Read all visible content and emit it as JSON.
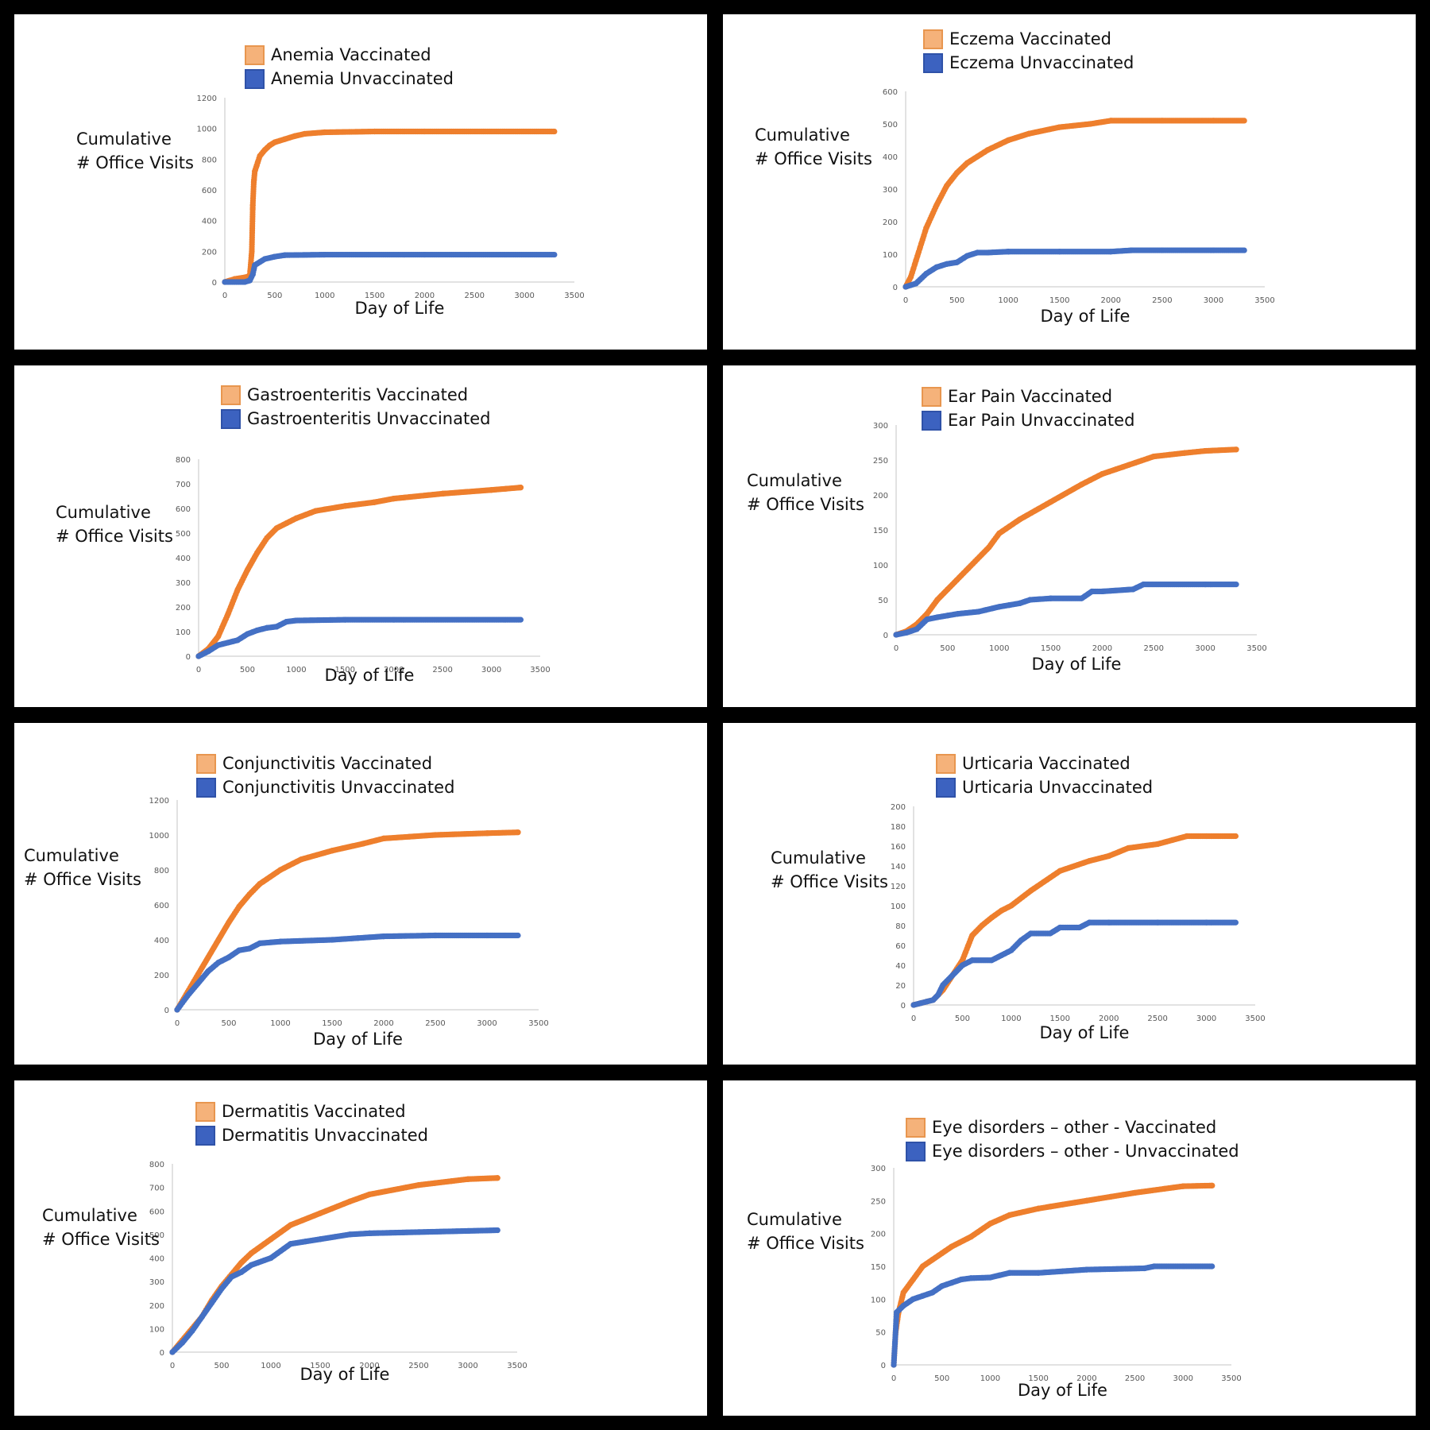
{
  "colors": {
    "background": "#000000",
    "panel": "#FFFFFF",
    "vaccinated": "#EE7F2D",
    "unvaccinated": "#4470C4",
    "axis": "#D9D9D9",
    "tick_text": "#595959"
  },
  "common": {
    "ylabel_line1": "Cumulative",
    "ylabel_line2": "# Office Visits",
    "xlabel": "Day of Life"
  },
  "panels": [
    {
      "legend_vax": "Anemia Vaccinated",
      "legend_unvax": "Anemia Unvaccinated"
    },
    {
      "legend_vax": "Eczema Vaccinated",
      "legend_unvax": "Eczema Unvaccinated"
    },
    {
      "legend_vax": "Gastroenteritis Vaccinated",
      "legend_unvax": "Gastroenteritis Unvaccinated"
    },
    {
      "legend_vax": "Ear Pain Vaccinated",
      "legend_unvax": "Ear Pain Unvaccinated"
    },
    {
      "legend_vax": "Conjunctivitis Vaccinated",
      "legend_unvax": "Conjunctivitis Unvaccinated"
    },
    {
      "legend_vax": "Urticaria Vaccinated",
      "legend_unvax": "Urticaria Unvaccinated"
    },
    {
      "legend_vax": "Dermatitis Vaccinated",
      "legend_unvax": "Dermatitis Unvaccinated"
    },
    {
      "legend_vax": "Eye disorders – other - Vaccinated",
      "legend_unvax": "Eye disorders – other - Unvaccinated"
    }
  ],
  "chart_data": [
    {
      "type": "scatter",
      "xlabel": "Day of Life",
      "ylabel": "Cumulative # Office Visits",
      "xlim": [
        0,
        3500
      ],
      "ylim": [
        0,
        1200
      ],
      "xticks": [
        0,
        500,
        1000,
        1500,
        2000,
        2500,
        3000,
        3500
      ],
      "yticks": [
        0,
        200,
        400,
        600,
        800,
        1000,
        1200
      ],
      "series": [
        {
          "name": "Anemia Vaccinated",
          "x": [
            0,
            100,
            200,
            250,
            270,
            280,
            290,
            300,
            320,
            350,
            400,
            450,
            500,
            600,
            700,
            800,
            1000,
            1500,
            2000,
            3300
          ],
          "y": [
            0,
            20,
            30,
            40,
            200,
            500,
            650,
            720,
            760,
            820,
            860,
            890,
            910,
            930,
            950,
            965,
            975,
            980,
            980,
            980
          ]
        },
        {
          "name": "Anemia Unvaccinated",
          "x": [
            0,
            200,
            250,
            280,
            300,
            350,
            400,
            500,
            600,
            1000,
            2000,
            3300
          ],
          "y": [
            0,
            0,
            10,
            50,
            110,
            130,
            150,
            165,
            175,
            178,
            178,
            178
          ]
        }
      ]
    },
    {
      "type": "scatter",
      "xlabel": "Day of Life",
      "ylabel": "Cumulative # Office Visits",
      "xlim": [
        0,
        3500
      ],
      "ylim": [
        0,
        600
      ],
      "xticks": [
        0,
        500,
        1000,
        1500,
        2000,
        2500,
        3000,
        3500
      ],
      "yticks": [
        0,
        100,
        200,
        300,
        400,
        500,
        600
      ],
      "series": [
        {
          "name": "Eczema Vaccinated",
          "x": [
            0,
            50,
            100,
            200,
            300,
            400,
            500,
            600,
            700,
            800,
            1000,
            1200,
            1500,
            1800,
            2000,
            2500,
            3000,
            3300
          ],
          "y": [
            0,
            30,
            80,
            180,
            250,
            310,
            350,
            380,
            400,
            420,
            450,
            470,
            490,
            500,
            510,
            510,
            510,
            510
          ]
        },
        {
          "name": "Eczema Unvaccinated",
          "x": [
            0,
            100,
            200,
            300,
            400,
            500,
            600,
            700,
            800,
            1000,
            1500,
            2000,
            2200,
            2500,
            3000,
            3300
          ],
          "y": [
            0,
            10,
            40,
            60,
            70,
            75,
            95,
            105,
            105,
            108,
            108,
            108,
            112,
            112,
            112,
            112
          ]
        }
      ]
    },
    {
      "type": "scatter",
      "xlabel": "Day of Life",
      "ylabel": "Cumulative # Office Visits",
      "xlim": [
        0,
        3500
      ],
      "ylim": [
        0,
        800
      ],
      "xticks": [
        0,
        500,
        1000,
        1500,
        2000,
        2500,
        3000,
        3500
      ],
      "yticks": [
        0,
        100,
        200,
        300,
        400,
        500,
        600,
        700,
        800
      ],
      "series": [
        {
          "name": "Gastroenteritis Vaccinated",
          "x": [
            0,
            100,
            200,
            300,
            400,
            500,
            600,
            700,
            800,
            900,
            1000,
            1200,
            1500,
            1800,
            2000,
            2500,
            3000,
            3300
          ],
          "y": [
            0,
            30,
            80,
            170,
            270,
            350,
            420,
            480,
            520,
            540,
            560,
            590,
            610,
            625,
            640,
            660,
            675,
            685
          ]
        },
        {
          "name": "Gastroenteritis Unvaccinated",
          "x": [
            0,
            100,
            200,
            300,
            400,
            500,
            600,
            700,
            800,
            900,
            1000,
            1500,
            2000,
            3300
          ],
          "y": [
            0,
            20,
            45,
            55,
            65,
            90,
            105,
            115,
            120,
            140,
            145,
            148,
            148,
            148
          ]
        }
      ]
    },
    {
      "type": "scatter",
      "xlabel": "Day of Life",
      "ylabel": "Cumulative # Office Visits",
      "xlim": [
        0,
        3500
      ],
      "ylim": [
        0,
        300
      ],
      "xticks": [
        0,
        500,
        1000,
        1500,
        2000,
        2500,
        3000,
        3500
      ],
      "yticks": [
        0,
        50,
        100,
        150,
        200,
        250,
        300
      ],
      "series": [
        {
          "name": "Ear Pain Vaccinated",
          "x": [
            0,
            100,
            200,
            300,
            400,
            500,
            700,
            900,
            1000,
            1200,
            1500,
            1800,
            2000,
            2200,
            2500,
            2800,
            3000,
            3300
          ],
          "y": [
            0,
            5,
            15,
            30,
            50,
            65,
            95,
            125,
            145,
            165,
            190,
            215,
            230,
            240,
            255,
            260,
            263,
            265
          ]
        },
        {
          "name": "Ear Pain Unvaccinated",
          "x": [
            0,
            100,
            200,
            300,
            400,
            600,
            800,
            1000,
            1200,
            1300,
            1500,
            1800,
            1900,
            2000,
            2300,
            2400,
            3000,
            3300
          ],
          "y": [
            0,
            3,
            8,
            22,
            25,
            30,
            33,
            40,
            45,
            50,
            52,
            52,
            62,
            62,
            65,
            72,
            72,
            72
          ]
        }
      ]
    },
    {
      "type": "scatter",
      "xlabel": "Day of Life",
      "ylabel": "Cumulative # Office Visits",
      "xlim": [
        0,
        3500
      ],
      "ylim": [
        0,
        1200
      ],
      "xticks": [
        0,
        500,
        1000,
        1500,
        2000,
        2500,
        3000,
        3500
      ],
      "yticks": [
        0,
        200,
        400,
        600,
        800,
        1000,
        1200
      ],
      "series": [
        {
          "name": "Conjunctivitis Vaccinated",
          "x": [
            0,
            100,
            200,
            300,
            400,
            500,
            600,
            700,
            800,
            1000,
            1200,
            1500,
            1800,
            2000,
            2500,
            3000,
            3300
          ],
          "y": [
            0,
            100,
            200,
            300,
            400,
            500,
            590,
            660,
            720,
            800,
            860,
            910,
            950,
            980,
            1000,
            1010,
            1015
          ]
        },
        {
          "name": "Conjunctivitis Unvaccinated",
          "x": [
            0,
            100,
            200,
            300,
            400,
            500,
            600,
            700,
            800,
            1000,
            1500,
            2000,
            2500,
            3000,
            3300
          ],
          "y": [
            0,
            80,
            150,
            220,
            270,
            300,
            340,
            350,
            380,
            390,
            400,
            420,
            425,
            425,
            425
          ]
        }
      ]
    },
    {
      "type": "scatter",
      "xlabel": "Day of Life",
      "ylabel": "Cumulative # Office Visits",
      "xlim": [
        0,
        3500
      ],
      "ylim": [
        0,
        200
      ],
      "xticks": [
        0,
        500,
        1000,
        1500,
        2000,
        2500,
        3000,
        3500
      ],
      "yticks": [
        0,
        20,
        40,
        60,
        80,
        100,
        120,
        140,
        160,
        180,
        200
      ],
      "series": [
        {
          "name": "Urticaria Vaccinated",
          "x": [
            0,
            200,
            300,
            400,
            500,
            600,
            700,
            800,
            900,
            1000,
            1200,
            1500,
            1800,
            2000,
            2200,
            2500,
            2800,
            3000,
            3300
          ],
          "y": [
            0,
            5,
            15,
            30,
            45,
            70,
            80,
            88,
            95,
            100,
            115,
            135,
            145,
            150,
            158,
            162,
            170,
            170,
            170
          ]
        },
        {
          "name": "Urticaria Unvaccinated",
          "x": [
            0,
            200,
            250,
            300,
            400,
            500,
            600,
            800,
            900,
            1000,
            1100,
            1200,
            1400,
            1500,
            1700,
            1800,
            2000,
            2500,
            3000,
            3300
          ],
          "y": [
            0,
            5,
            10,
            20,
            30,
            40,
            45,
            45,
            50,
            55,
            65,
            72,
            72,
            78,
            78,
            83,
            83,
            83,
            83,
            83
          ]
        }
      ]
    },
    {
      "type": "scatter",
      "xlabel": "Day of Life",
      "ylabel": "Cumulative # Office Visits",
      "xlim": [
        0,
        3500
      ],
      "ylim": [
        0,
        800
      ],
      "xticks": [
        0,
        500,
        1000,
        1500,
        2000,
        2500,
        3000,
        3500
      ],
      "yticks": [
        0,
        100,
        200,
        300,
        400,
        500,
        600,
        700,
        800
      ],
      "series": [
        {
          "name": "Dermatitis Vaccinated",
          "x": [
            0,
            100,
            200,
            300,
            400,
            500,
            600,
            700,
            800,
            1000,
            1200,
            1500,
            1800,
            2000,
            2500,
            3000,
            3300
          ],
          "y": [
            0,
            50,
            100,
            150,
            220,
            280,
            330,
            380,
            420,
            480,
            540,
            590,
            640,
            670,
            710,
            735,
            740
          ]
        },
        {
          "name": "Dermatitis Unvaccinated",
          "x": [
            0,
            100,
            200,
            300,
            400,
            500,
            600,
            700,
            800,
            1000,
            1200,
            1500,
            1800,
            2000,
            2500,
            3000,
            3300
          ],
          "y": [
            0,
            40,
            90,
            150,
            210,
            270,
            320,
            340,
            370,
            400,
            460,
            480,
            500,
            505,
            510,
            515,
            518
          ]
        }
      ]
    },
    {
      "type": "scatter",
      "xlabel": "Day of Life",
      "ylabel": "Cumulative # Office Visits",
      "xlim": [
        0,
        3500
      ],
      "ylim": [
        0,
        300
      ],
      "xticks": [
        0,
        500,
        1000,
        1500,
        2000,
        2500,
        3000,
        3500
      ],
      "yticks": [
        0,
        50,
        100,
        150,
        200,
        250,
        300
      ],
      "series": [
        {
          "name": "Eye disorders – other - Vaccinated",
          "x": [
            0,
            20,
            50,
            100,
            200,
            300,
            400,
            500,
            600,
            800,
            1000,
            1200,
            1500,
            2000,
            2500,
            2800,
            3000,
            3300
          ],
          "y": [
            0,
            50,
            80,
            110,
            130,
            150,
            160,
            170,
            180,
            195,
            215,
            228,
            238,
            250,
            262,
            268,
            272,
            273
          ]
        },
        {
          "name": "Eye disorders – other - Unvaccinated",
          "x": [
            0,
            30,
            100,
            200,
            300,
            400,
            500,
            600,
            700,
            800,
            1000,
            1200,
            1500,
            2000,
            2600,
            2700,
            3000,
            3300
          ],
          "y": [
            0,
            80,
            90,
            100,
            105,
            110,
            120,
            125,
            130,
            132,
            133,
            140,
            140,
            145,
            147,
            150,
            150,
            150
          ]
        }
      ]
    }
  ]
}
